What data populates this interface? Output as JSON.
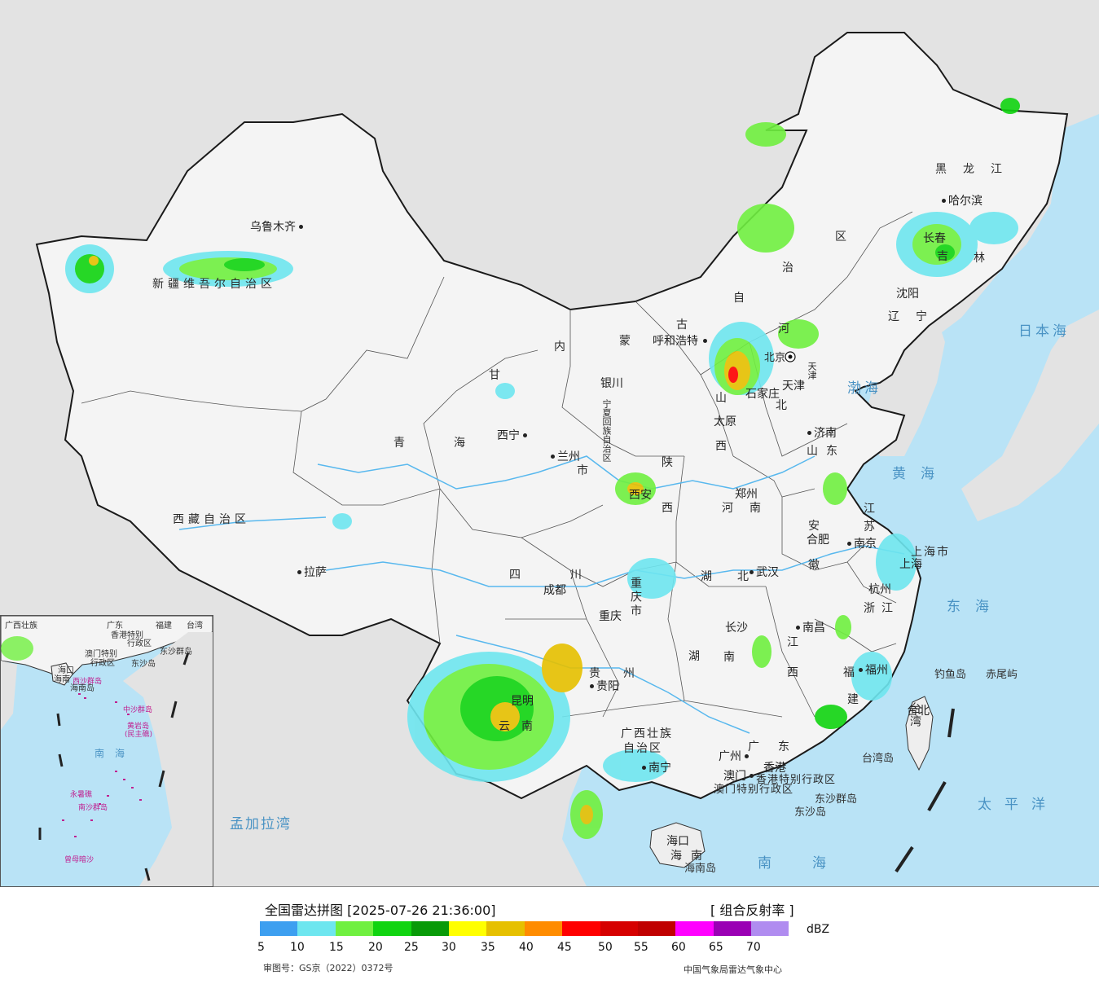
{
  "map": {
    "provinces": [
      "新疆维吾尔自治区",
      "西藏自治区",
      "青海",
      "甘",
      "内",
      "蒙",
      "古",
      "自",
      "治",
      "区",
      "黑龙江",
      "吉",
      "林",
      "辽宁",
      "河",
      "北",
      "山",
      "西",
      "山东",
      "河南",
      "陕",
      "西",
      "四",
      "川",
      "重庆市",
      "湖",
      "北",
      "湖",
      "南",
      "江",
      "西",
      "贵",
      "州",
      "云",
      "南",
      "广西壮族",
      "自治区",
      "广",
      "东",
      "福",
      "建",
      "浙江",
      "江",
      "苏",
      "安",
      "徽",
      "上海市",
      "台湾",
      "海",
      "南",
      "宁夏回族自治区",
      "天津",
      "北京",
      "香港特别行政区",
      "澳门特别行政区",
      "市"
    ],
    "cities": [
      "乌鲁木齐",
      "拉萨",
      "西宁",
      "兰州",
      "银川",
      "呼和浩特",
      "北京",
      "天津",
      "石家庄",
      "太原",
      "济南",
      "郑州",
      "西安",
      "成都",
      "重庆",
      "武汉",
      "合肥",
      "南京",
      "上海",
      "杭州",
      "长沙",
      "南昌",
      "福州",
      "台北",
      "贵阳",
      "昆明",
      "南宁",
      "广州",
      "香港",
      "澳门",
      "海口",
      "哈尔滨",
      "长春",
      "沈阳"
    ],
    "seas": [
      "日本海",
      "渤海",
      "黄海",
      "东海",
      "太平洋",
      "南海",
      "孟加拉湾"
    ],
    "islands": [
      "钓鱼岛",
      "赤尾屿",
      "台湾岛",
      "东沙群岛",
      "东沙岛",
      "海南岛"
    ],
    "inset": {
      "labels": [
        "广西壮族",
        "广东",
        "福建",
        "台湾",
        "香港特别",
        "行政区",
        "澳门特别",
        "行政区",
        "东沙群岛",
        "东沙岛",
        "海口",
        "海南",
        "海南岛",
        "南",
        "海"
      ],
      "pink_labels": [
        "西沙群岛",
        "中沙群岛",
        "黄岩岛",
        "(民主礁)",
        "永暑礁",
        "南沙群岛",
        "曾母暗沙"
      ]
    }
  },
  "legend": {
    "title": "全国雷达拼图 [2025-07-26 21:36:00]",
    "product": "[ 组合反射率 ]",
    "unit": "dBZ",
    "colors": [
      "#3d9ff0",
      "#6ee6ef",
      "#70f040",
      "#10d410",
      "#089a08",
      "#ffff00",
      "#e6c000",
      "#ff8c00",
      "#ff0000",
      "#d60000",
      "#c00000",
      "#ff00ff",
      "#9a00b4",
      "#b08cf0"
    ],
    "ticks": [
      "5",
      "10",
      "15",
      "20",
      "25",
      "30",
      "35",
      "40",
      "45",
      "50",
      "55",
      "60",
      "65",
      "70"
    ],
    "approval": "审图号：GS京（2022）0372号",
    "source": "中国气象局雷达气象中心"
  }
}
